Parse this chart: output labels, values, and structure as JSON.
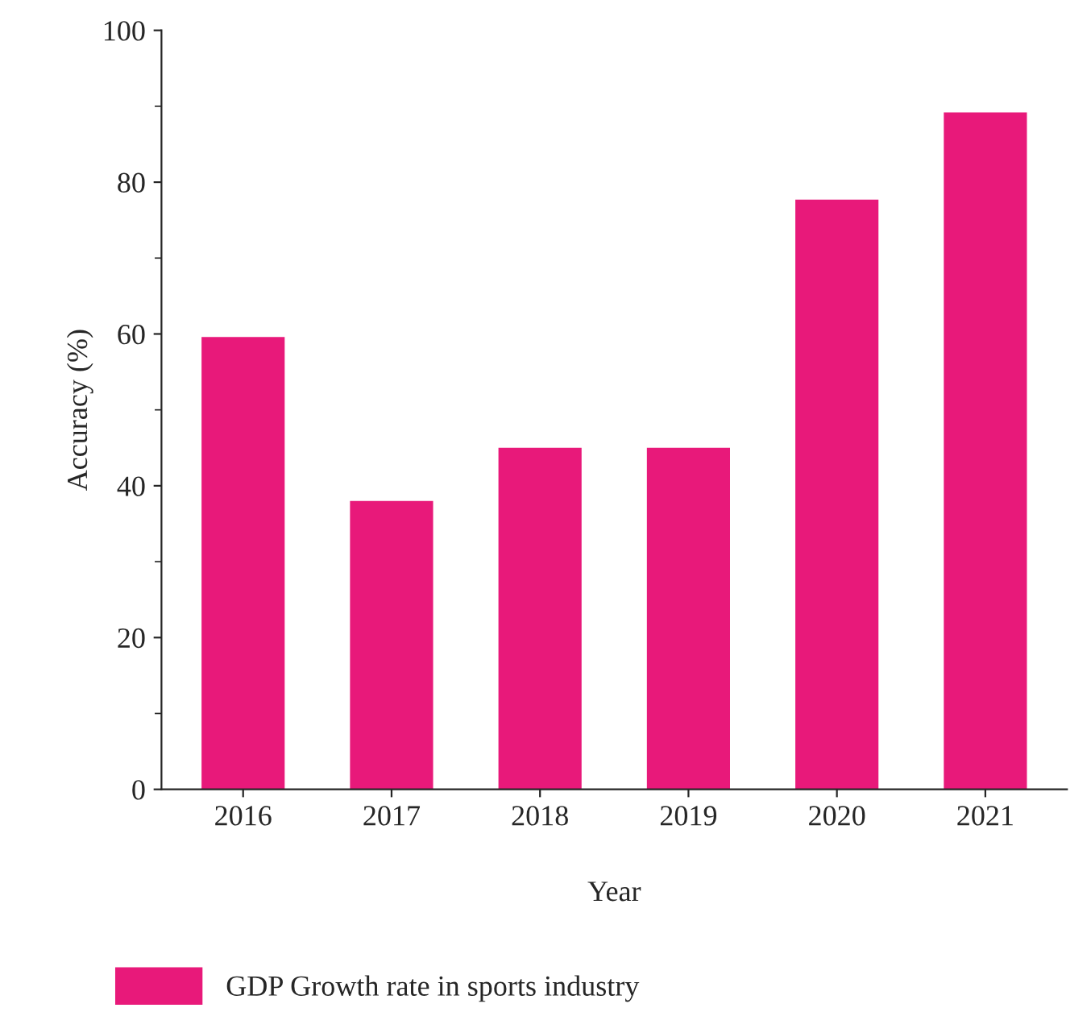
{
  "chart_data": {
    "type": "bar",
    "xlabel": "Year",
    "ylabel": "Accuracy (%)",
    "categories": [
      "2016",
      "2017",
      "2018",
      "2019",
      "2020",
      "2021"
    ],
    "series": [
      {
        "name": "GDP Growth rate in sports industry",
        "color": "#e8197a",
        "values": [
          59.6,
          38,
          45,
          45,
          77.7,
          89.2
        ]
      }
    ],
    "ylim": [
      0,
      100
    ],
    "yticks": [
      0,
      20,
      40,
      60,
      80,
      100
    ],
    "grid": false,
    "legend": "bottom"
  }
}
